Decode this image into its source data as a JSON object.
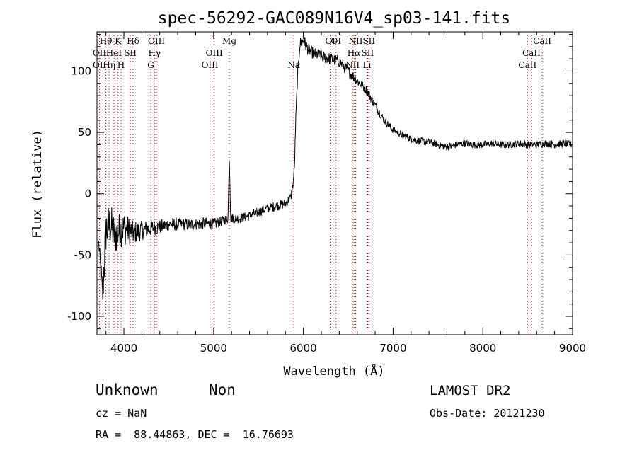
{
  "chart_data": {
    "type": "line",
    "title": "spec-56292-GAC089N16V4_sp03-141.fits",
    "xlabel": "Wavelength (Å)",
    "ylabel": "Flux (relative)",
    "xlim": [
      3700,
      9000
    ],
    "ylim": [
      -115,
      132
    ],
    "xticks": [
      4000,
      5000,
      6000,
      7000,
      8000,
      9000
    ],
    "yticks": [
      -100,
      -50,
      0,
      50,
      100
    ],
    "grid": false,
    "series": [
      {
        "x": [
          3720,
          3760,
          3800,
          3850,
          3900,
          3950,
          4000,
          4050,
          4100,
          4200,
          4300,
          4400,
          4500,
          4600,
          4700,
          4800,
          4900,
          5000,
          5100,
          5160,
          5175,
          5190,
          5300,
          5400,
          5500,
          5600,
          5700,
          5800,
          5860,
          5880,
          5900,
          5915,
          5935,
          5960,
          6000,
          6050,
          6100,
          6200,
          6300,
          6400,
          6500,
          6600,
          6700,
          6800,
          6900,
          7000,
          7100,
          7200,
          7300,
          7400,
          7500,
          7600,
          7700,
          7800,
          7900,
          8000,
          8100,
          8200,
          8300,
          8400,
          8500,
          8600,
          8700,
          8800,
          8900,
          8990
        ],
        "y": [
          -40,
          -85,
          -30,
          -25,
          -35,
          -30,
          -28,
          -30,
          -32,
          -30,
          -28,
          -27,
          -25,
          -25,
          -25,
          -25,
          -24,
          -25,
          -22,
          -20,
          30,
          -20,
          -20,
          -18,
          -15,
          -12,
          -10,
          -8,
          -3,
          5,
          20,
          60,
          95,
          122,
          125,
          118,
          115,
          112,
          110,
          108,
          100,
          92,
          85,
          72,
          60,
          52,
          48,
          45,
          43,
          42,
          40,
          38,
          40,
          41,
          40,
          40,
          41,
          40,
          40,
          41,
          40,
          40,
          41,
          40,
          41,
          40
        ],
        "noise": [
          4,
          22,
          20,
          18,
          16,
          15,
          14,
          12,
          10,
          8,
          7,
          6,
          6,
          5,
          5,
          5,
          5,
          5,
          4,
          4,
          0,
          4,
          4,
          4,
          4,
          4,
          4,
          4,
          4,
          4,
          4,
          4,
          5,
          6,
          6,
          5,
          5,
          5,
          5,
          5,
          5,
          4,
          4,
          4,
          3,
          3,
          3,
          3,
          3,
          3,
          3,
          3,
          3,
          3,
          3,
          3,
          3,
          3,
          3,
          3,
          3,
          3,
          3,
          3,
          3,
          3
        ]
      }
    ],
    "lines": [
      {
        "x": 3799,
        "label": "Hθ",
        "row": 1
      },
      {
        "x": 3727,
        "label": "OII",
        "row": 2
      },
      {
        "x": 3729,
        "label": "OII",
        "row": 3
      },
      {
        "x": 3835,
        "label": "Hη",
        "row": 3
      },
      {
        "x": 3889,
        "label": "HeI",
        "row": 2
      },
      {
        "x": 3934,
        "label": "K",
        "row": 1
      },
      {
        "x": 3968,
        "label": "H",
        "row": 3
      },
      {
        "x": 4072,
        "label": "SII",
        "row": 2
      },
      {
        "x": 4102,
        "label": "Hδ",
        "row": 1
      },
      {
        "x": 4300,
        "label": "G",
        "row": 3
      },
      {
        "x": 4341,
        "label": "Hγ",
        "row": 2
      },
      {
        "x": 4363,
        "label": "OIII",
        "row": 1
      },
      {
        "x": 4959,
        "label": "OIII",
        "row": 3
      },
      {
        "x": 5007,
        "label": "OIII",
        "row": 2
      },
      {
        "x": 5175,
        "label": "Mg",
        "row": 1
      },
      {
        "x": 5893,
        "label": "Na",
        "row": 3
      },
      {
        "x": 6300,
        "label": "OI",
        "row": 1
      },
      {
        "x": 6364,
        "label": "OI",
        "row": 1
      },
      {
        "x": 6548,
        "label": "NII",
        "row": 3
      },
      {
        "x": 6563,
        "label": "Hα",
        "row": 2
      },
      {
        "x": 6583,
        "label": "NII",
        "row": 1
      },
      {
        "x": 6708,
        "label": "Li",
        "row": 3
      },
      {
        "x": 6716,
        "label": "SII",
        "row": 2
      },
      {
        "x": 6731,
        "label": "SII",
        "row": 1
      },
      {
        "x": 8498,
        "label": "CaII",
        "row": 3
      },
      {
        "x": 8542,
        "label": "CaII",
        "row": 2
      },
      {
        "x": 8662,
        "label": "CaII",
        "row": 1
      }
    ],
    "line_color": "#000000",
    "marker_color": "#cc0000"
  },
  "info": {
    "class": "Unknown",
    "subclass": "Non",
    "cz": "cz = NaN",
    "coords": "RA =  88.44863, DEC =  16.76693",
    "survey": "LAMOST DR2",
    "obsdate": "Obs-Date: 20121230"
  }
}
